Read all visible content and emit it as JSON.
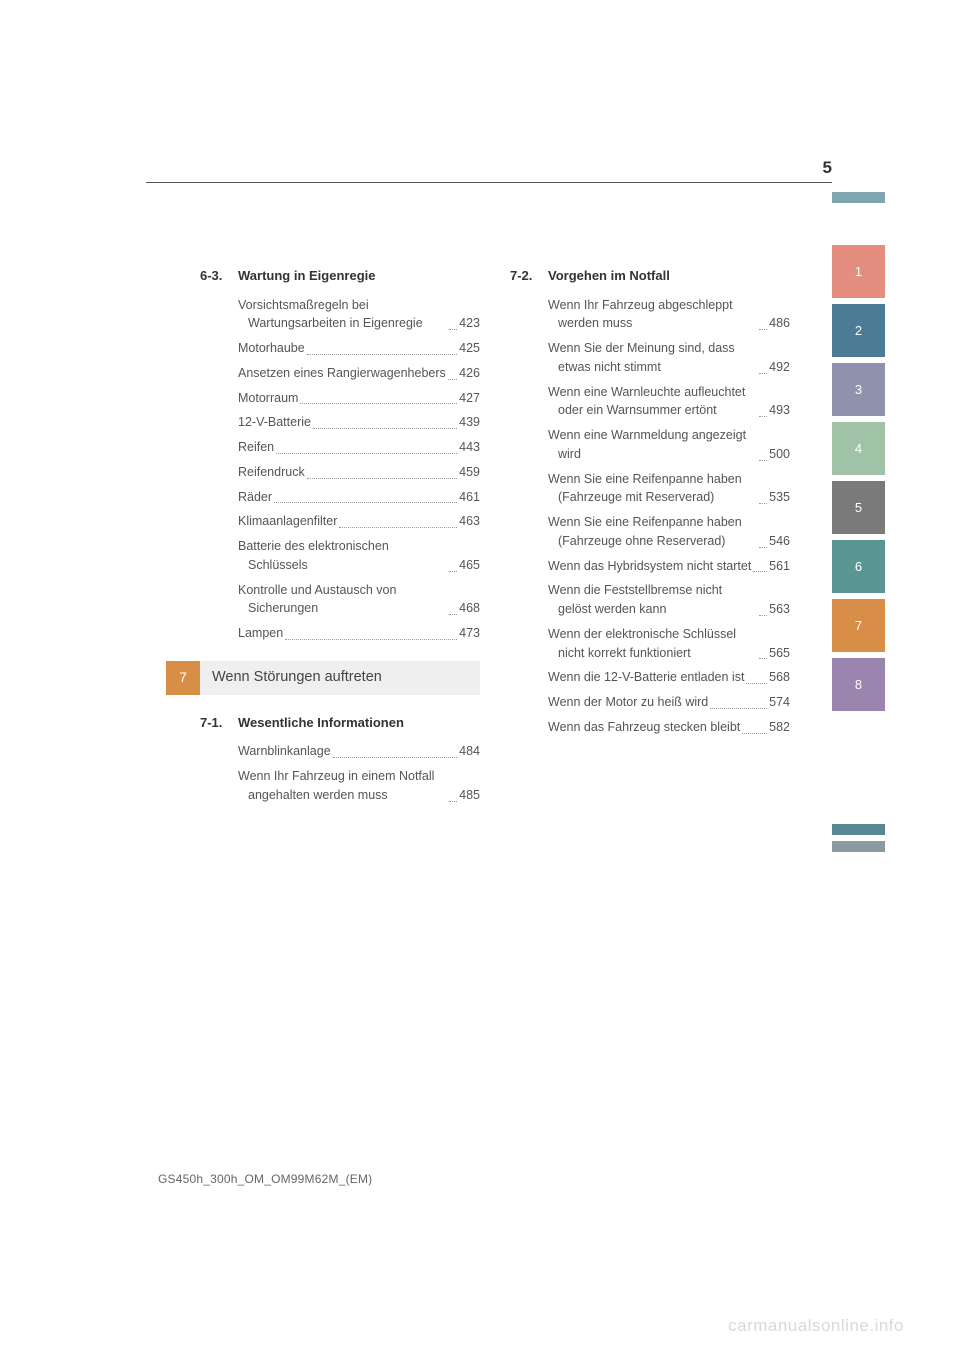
{
  "page_number": "5",
  "footer_code": "GS450h_300h_OM_OM99M62M_(EM)",
  "watermark": "carmanualsonline.info",
  "left_column": {
    "section_6_3": {
      "num": "6-3.",
      "title": "Wartung in Eigenregie",
      "entries": [
        {
          "label": "Vorsichtsmaßregeln bei Wartungsarbeiten in Eigenregie",
          "page": "423"
        },
        {
          "label": "Motorhaube",
          "page": "425"
        },
        {
          "label": "Ansetzen eines Rangierwagenhebers",
          "page": "426"
        },
        {
          "label": "Motorraum",
          "page": "427"
        },
        {
          "label": "12-V-Batterie",
          "page": "439"
        },
        {
          "label": "Reifen",
          "page": "443"
        },
        {
          "label": "Reifendruck",
          "page": "459"
        },
        {
          "label": "Räder",
          "page": "461"
        },
        {
          "label": "Klimaanlagenfilter",
          "page": "463"
        },
        {
          "label": "Batterie des elektronischen Schlüssels",
          "page": "465"
        },
        {
          "label": "Kontrolle und Austausch von Sicherungen",
          "page": "468"
        },
        {
          "label": "Lampen",
          "page": "473"
        }
      ]
    },
    "chapter_7": {
      "tab_num": "7",
      "title": "Wenn Störungen auftreten",
      "tab_color": "#d98e47"
    },
    "section_7_1": {
      "num": "7-1.",
      "title": "Wesentliche Informationen",
      "entries": [
        {
          "label": "Warnblinkanlage",
          "page": "484"
        },
        {
          "label": "Wenn Ihr Fahrzeug in einem Notfall angehalten werden muss",
          "page": "485"
        }
      ]
    }
  },
  "right_column": {
    "section_7_2": {
      "num": "7-2.",
      "title": "Vorgehen im Notfall",
      "entries": [
        {
          "label": "Wenn Ihr Fahrzeug abgeschleppt werden muss",
          "page": "486"
        },
        {
          "label": "Wenn Sie der Meinung sind, dass etwas nicht stimmt",
          "page": "492"
        },
        {
          "label": "Wenn eine Warnleuchte aufleuchtet oder ein Warnsummer ertönt",
          "page": "493"
        },
        {
          "label": "Wenn eine Warnmeldung angezeigt wird",
          "page": "500"
        },
        {
          "label": "Wenn Sie eine Reifenpanne haben (Fahrzeuge mit Reserverad)",
          "page": "535"
        },
        {
          "label": "Wenn Sie eine Reifenpanne haben (Fahrzeuge ohne Reserverad)",
          "page": "546"
        },
        {
          "label": "Wenn das Hybridsystem nicht startet",
          "page": "561"
        },
        {
          "label": "Wenn die Feststellbremse nicht gelöst werden kann",
          "page": "563"
        },
        {
          "label": "Wenn der elektronische Schlüssel nicht korrekt funktioniert",
          "page": "565"
        },
        {
          "label": "Wenn die 12-V-Batterie entladen ist",
          "page": "568"
        },
        {
          "label": "Wenn der Motor zu heiß wird",
          "page": "574"
        },
        {
          "label": "Wenn das Fahrzeug stecken bleibt",
          "page": "582"
        }
      ]
    }
  },
  "tabs": [
    {
      "num": "1",
      "color": "#e48e82"
    },
    {
      "num": "2",
      "color": "#4c7b95"
    },
    {
      "num": "3",
      "color": "#8e92ad"
    },
    {
      "num": "4",
      "color": "#a0c2a6"
    },
    {
      "num": "5",
      "color": "#7a7a7a"
    },
    {
      "num": "6",
      "color": "#5c9693"
    },
    {
      "num": "7",
      "color": "#d98e47"
    },
    {
      "num": "8",
      "color": "#9a85af"
    }
  ],
  "bottom_strips": [
    {
      "color": "#5a8696"
    },
    {
      "color": "#8a9aa0"
    }
  ],
  "top_strip_color": "#7fa6b0"
}
